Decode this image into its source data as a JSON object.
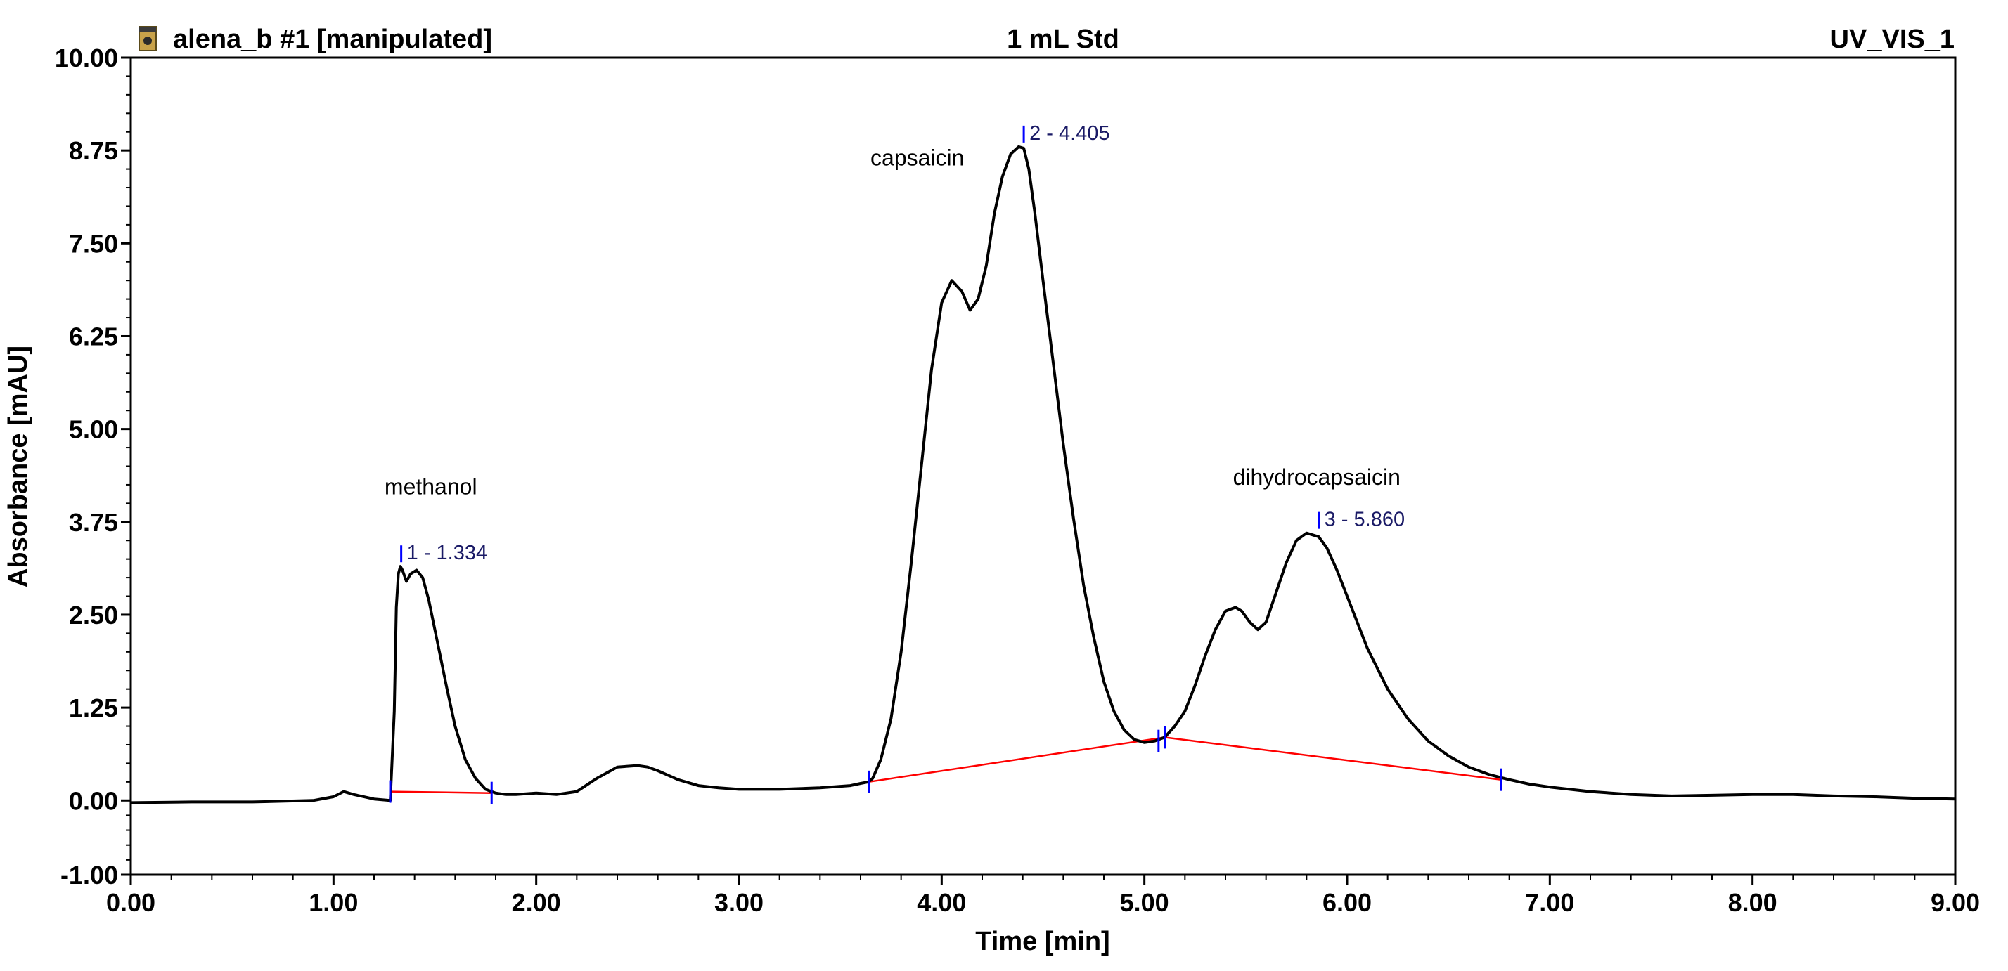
{
  "header": {
    "sample": "alena_b #1 [manipulated]",
    "center": "1 mL Std",
    "channel": "UV_VIS_1"
  },
  "colors": {
    "trace": "#000000",
    "baseline": "#ff0000",
    "marker": "#0000ff",
    "peak_label": "#1a1a66"
  },
  "chart_data": {
    "type": "line",
    "title": "",
    "xlabel": "Time [min]",
    "ylabel": "Absorbance [mAU]",
    "xlim": [
      0,
      9
    ],
    "ylim": [
      -1,
      10
    ],
    "x_ticks": [
      0,
      1,
      2,
      3,
      4,
      5,
      6,
      7,
      8,
      9
    ],
    "x_tick_labels": [
      "0.00",
      "1.00",
      "2.00",
      "3.00",
      "4.00",
      "5.00",
      "6.00",
      "7.00",
      "8.00",
      "9.00"
    ],
    "y_ticks": [
      -1,
      0,
      1.25,
      2.5,
      3.75,
      5,
      6.25,
      7.5,
      8.75,
      10
    ],
    "y_tick_labels": [
      "-1.00",
      "0.00",
      "1.25",
      "2.50",
      "3.75",
      "5.00",
      "6.25",
      "7.50",
      "8.75",
      "10.00"
    ],
    "grid": false,
    "series": [
      {
        "x": [
          0.0,
          0.3,
          0.6,
          0.9,
          1.0,
          1.05,
          1.1,
          1.2,
          1.28,
          1.3,
          1.31,
          1.32,
          1.33,
          1.34,
          1.36,
          1.38,
          1.41,
          1.44,
          1.47,
          1.5,
          1.53,
          1.56,
          1.6,
          1.65,
          1.7,
          1.75,
          1.8,
          1.85,
          1.9,
          2.0,
          2.1,
          2.2,
          2.3,
          2.4,
          2.5,
          2.55,
          2.6,
          2.7,
          2.8,
          2.9,
          3.0,
          3.2,
          3.4,
          3.55,
          3.6,
          3.64,
          3.66,
          3.7,
          3.75,
          3.8,
          3.85,
          3.9,
          3.95,
          4.0,
          4.05,
          4.1,
          4.14,
          4.18,
          4.22,
          4.26,
          4.3,
          4.34,
          4.38,
          4.405,
          4.43,
          4.46,
          4.5,
          4.55,
          4.6,
          4.65,
          4.7,
          4.75,
          4.8,
          4.85,
          4.9,
          4.95,
          5.0,
          5.05,
          5.1,
          5.15,
          5.2,
          5.25,
          5.3,
          5.35,
          5.4,
          5.45,
          5.48,
          5.52,
          5.56,
          5.6,
          5.65,
          5.7,
          5.75,
          5.8,
          5.86,
          5.9,
          5.95,
          6.0,
          6.05,
          6.1,
          6.2,
          6.3,
          6.4,
          6.5,
          6.6,
          6.7,
          6.8,
          6.9,
          7.0,
          7.2,
          7.4,
          7.6,
          7.8,
          8.0,
          8.2,
          8.4,
          8.6,
          8.8,
          9.0
        ],
        "y": [
          -0.03,
          -0.02,
          -0.02,
          0.0,
          0.05,
          0.12,
          0.08,
          0.02,
          0.0,
          1.2,
          2.6,
          3.05,
          3.15,
          3.1,
          2.95,
          3.05,
          3.1,
          3.0,
          2.7,
          2.3,
          1.9,
          1.5,
          1.0,
          0.55,
          0.3,
          0.15,
          0.1,
          0.08,
          0.08,
          0.1,
          0.08,
          0.12,
          0.3,
          0.45,
          0.47,
          0.45,
          0.4,
          0.28,
          0.2,
          0.17,
          0.15,
          0.15,
          0.17,
          0.2,
          0.23,
          0.25,
          0.3,
          0.55,
          1.1,
          2.0,
          3.2,
          4.5,
          5.8,
          6.7,
          7.0,
          6.85,
          6.6,
          6.75,
          7.2,
          7.9,
          8.4,
          8.7,
          8.8,
          8.78,
          8.5,
          7.9,
          7.0,
          5.9,
          4.8,
          3.8,
          2.9,
          2.2,
          1.6,
          1.2,
          0.95,
          0.82,
          0.78,
          0.8,
          0.85,
          1.0,
          1.2,
          1.55,
          1.95,
          2.3,
          2.55,
          2.6,
          2.55,
          2.4,
          2.3,
          2.4,
          2.8,
          3.2,
          3.5,
          3.6,
          3.55,
          3.4,
          3.1,
          2.75,
          2.4,
          2.05,
          1.5,
          1.1,
          0.8,
          0.6,
          0.45,
          0.35,
          0.28,
          0.22,
          0.18,
          0.12,
          0.08,
          0.06,
          0.07,
          0.08,
          0.08,
          0.06,
          0.05,
          0.03,
          0.02
        ]
      }
    ],
    "integration_baselines": [
      {
        "x": [
          1.28,
          1.78
        ],
        "y": [
          0.12,
          0.1
        ]
      },
      {
        "x": [
          3.64,
          5.1,
          6.76
        ],
        "y": [
          0.25,
          0.85,
          0.28
        ]
      }
    ],
    "peak_markers": [
      {
        "label": "1 - 1.334",
        "x": 1.334,
        "y": 3.15
      },
      {
        "label": "2 - 4.405",
        "x": 4.405,
        "y": 8.8
      },
      {
        "label": "3 - 5.860",
        "x": 5.86,
        "y": 3.6
      }
    ],
    "boundary_markers": [
      {
        "x": 1.28,
        "y": 0.12
      },
      {
        "x": 1.78,
        "y": 0.1
      },
      {
        "x": 3.64,
        "y": 0.25
      },
      {
        "x": 5.07,
        "y": 0.8
      },
      {
        "x": 5.1,
        "y": 0.85
      },
      {
        "x": 6.76,
        "y": 0.28
      }
    ],
    "annotations": [
      {
        "text": "methanol",
        "x": 1.48,
        "y": 4.12
      },
      {
        "text": "capsaicin",
        "x": 3.88,
        "y": 8.55
      },
      {
        "text": "dihydrocapsaicin",
        "x": 5.85,
        "y": 4.25
      }
    ]
  }
}
